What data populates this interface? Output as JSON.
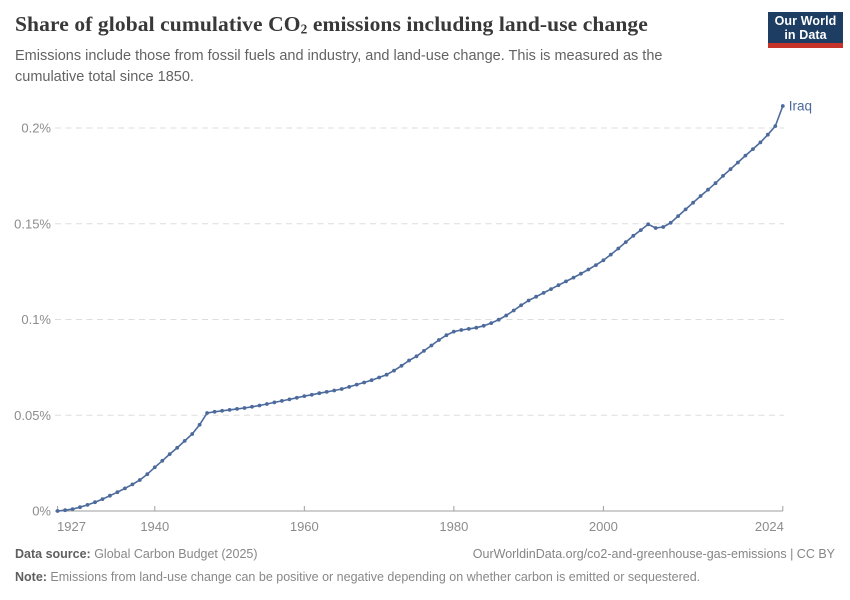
{
  "header": {
    "title_pre": "Share of global cumulative CO",
    "title_sub": "2",
    "title_post": " emissions including land-use change",
    "subtitle": "Emissions include those from fossil fuels and industry, and land-use change. This is measured as the cumulative total since 1850.",
    "logo": {
      "line1": "Our World",
      "line2": "in Data"
    }
  },
  "chart_data": {
    "type": "line",
    "title": "Share of global cumulative CO₂ emissions including land-use change",
    "subtitle": "Emissions include those from fossil fuels and industry, and land-use change. This is measured as the cumulative total since 1850.",
    "unit": "%",
    "grid": "dashed-horizontal-gridlines",
    "legend_position": "end-of-line-label",
    "xlim": [
      1927,
      2024
    ],
    "ylim": [
      0,
      0.21
    ],
    "x_ticks": [
      1927,
      1940,
      1960,
      1980,
      2000,
      2024
    ],
    "y_ticks": [
      {
        "value": 0,
        "label": "0%"
      },
      {
        "value": 0.05,
        "label": "0.05%"
      },
      {
        "value": 0.1,
        "label": "0.1%"
      },
      {
        "value": 0.15,
        "label": "0.15%"
      },
      {
        "value": 0.2,
        "label": "0.2%"
      }
    ],
    "series": [
      {
        "name": "Iraq",
        "color": "#4C6A9C",
        "x": [
          1927,
          1928,
          1929,
          1930,
          1931,
          1932,
          1933,
          1934,
          1935,
          1936,
          1937,
          1938,
          1939,
          1940,
          1941,
          1942,
          1943,
          1944,
          1945,
          1946,
          1947,
          1948,
          1949,
          1950,
          1951,
          1952,
          1953,
          1954,
          1955,
          1956,
          1957,
          1958,
          1959,
          1960,
          1961,
          1962,
          1963,
          1964,
          1965,
          1966,
          1967,
          1968,
          1969,
          1970,
          1971,
          1972,
          1973,
          1974,
          1975,
          1976,
          1977,
          1978,
          1979,
          1980,
          1981,
          1982,
          1983,
          1984,
          1985,
          1986,
          1987,
          1988,
          1989,
          1990,
          1991,
          1992,
          1993,
          1994,
          1995,
          1996,
          1997,
          1998,
          1999,
          2000,
          2001,
          2002,
          2003,
          2004,
          2005,
          2006,
          2007,
          2008,
          2009,
          2010,
          2011,
          2012,
          2013,
          2014,
          2015,
          2016,
          2017,
          2018,
          2019,
          2020,
          2021,
          2022,
          2023,
          2024
        ],
        "values": [
          0.0,
          0.0004,
          0.001,
          0.002,
          0.0032,
          0.0046,
          0.0062,
          0.008,
          0.0098,
          0.0118,
          0.0139,
          0.0162,
          0.0192,
          0.0228,
          0.0262,
          0.0297,
          0.033,
          0.0366,
          0.0402,
          0.045,
          0.0512,
          0.0518,
          0.0523,
          0.0528,
          0.0533,
          0.0538,
          0.0544,
          0.0551,
          0.0559,
          0.0567,
          0.0575,
          0.0583,
          0.0591,
          0.06,
          0.0607,
          0.0615,
          0.0622,
          0.0629,
          0.0637,
          0.0648,
          0.066,
          0.0671,
          0.0683,
          0.0697,
          0.0712,
          0.0733,
          0.0758,
          0.0786,
          0.0808,
          0.0836,
          0.0864,
          0.0893,
          0.0918,
          0.0937,
          0.0945,
          0.0951,
          0.0957,
          0.0967,
          0.0981,
          0.0999,
          0.1021,
          0.1047,
          0.1074,
          0.1099,
          0.1119,
          0.1139,
          0.1159,
          0.1179,
          0.1199,
          0.1219,
          0.1239,
          0.1261,
          0.1284,
          0.1309,
          0.1339,
          0.1371,
          0.1404,
          0.1437,
          0.1467,
          0.1497,
          0.1478,
          0.1483,
          0.1505,
          0.154,
          0.1575,
          0.161,
          0.1645,
          0.1678,
          0.1712,
          0.175,
          0.1785,
          0.182,
          0.1856,
          0.189,
          0.1925,
          0.1965,
          0.201,
          0.2115
        ]
      }
    ]
  },
  "colors": {
    "line": "#4C6A9C",
    "gridline": "#dddddd",
    "axis": "#9e9e9e",
    "tick_label": "#8c8c8c",
    "logo_bg": "#1d3d63",
    "logo_bar": "#c5332b"
  },
  "footer": {
    "datasource_label": "Data source:",
    "datasource_text": " Global Carbon Budget (2025)",
    "link": "OurWorldinData.org/co2-and-greenhouse-gas-emissions | CC BY",
    "note_label": "Note:",
    "note_text": " Emissions from land-use change can be positive or negative depending on whether carbon is emitted or sequestered."
  }
}
